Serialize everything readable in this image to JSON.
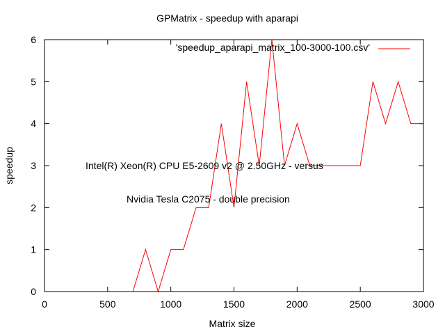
{
  "chart_data": {
    "type": "line",
    "title": "GPMatrix - speedup with aparapi",
    "xlabel": "Matrix size",
    "ylabel": "speedup",
    "xlim": [
      0,
      3000
    ],
    "ylim": [
      0,
      6
    ],
    "xticks": [
      0,
      500,
      1000,
      1500,
      2000,
      2500,
      3000
    ],
    "yticks": [
      0,
      1,
      2,
      3,
      4,
      5,
      6
    ],
    "grid": false,
    "legend_position": "top-right",
    "series": [
      {
        "name": "'speedup_aparapi_matrix_100-3000-100.csv'",
        "color": "#ff0000",
        "x": [
          100,
          200,
          300,
          400,
          500,
          600,
          700,
          800,
          900,
          1000,
          1100,
          1200,
          1300,
          1400,
          1500,
          1600,
          1700,
          1800,
          1900,
          2000,
          2100,
          2200,
          2300,
          2400,
          2500,
          2600,
          2700,
          2800,
          2900,
          3000
        ],
        "y": [
          0,
          0,
          0,
          0,
          0,
          0,
          0,
          1,
          0,
          1,
          1,
          2,
          2,
          4,
          2,
          5,
          3,
          6,
          3,
          4,
          3,
          3,
          3,
          3,
          3,
          5,
          4,
          5,
          4,
          4
        ]
      }
    ],
    "annotations": [
      "Intel(R) Xeon(R) CPU E5-2609 v2 @ 2.50GHz - versus",
      "Nvidia Tesla C2075 - double precision"
    ]
  }
}
